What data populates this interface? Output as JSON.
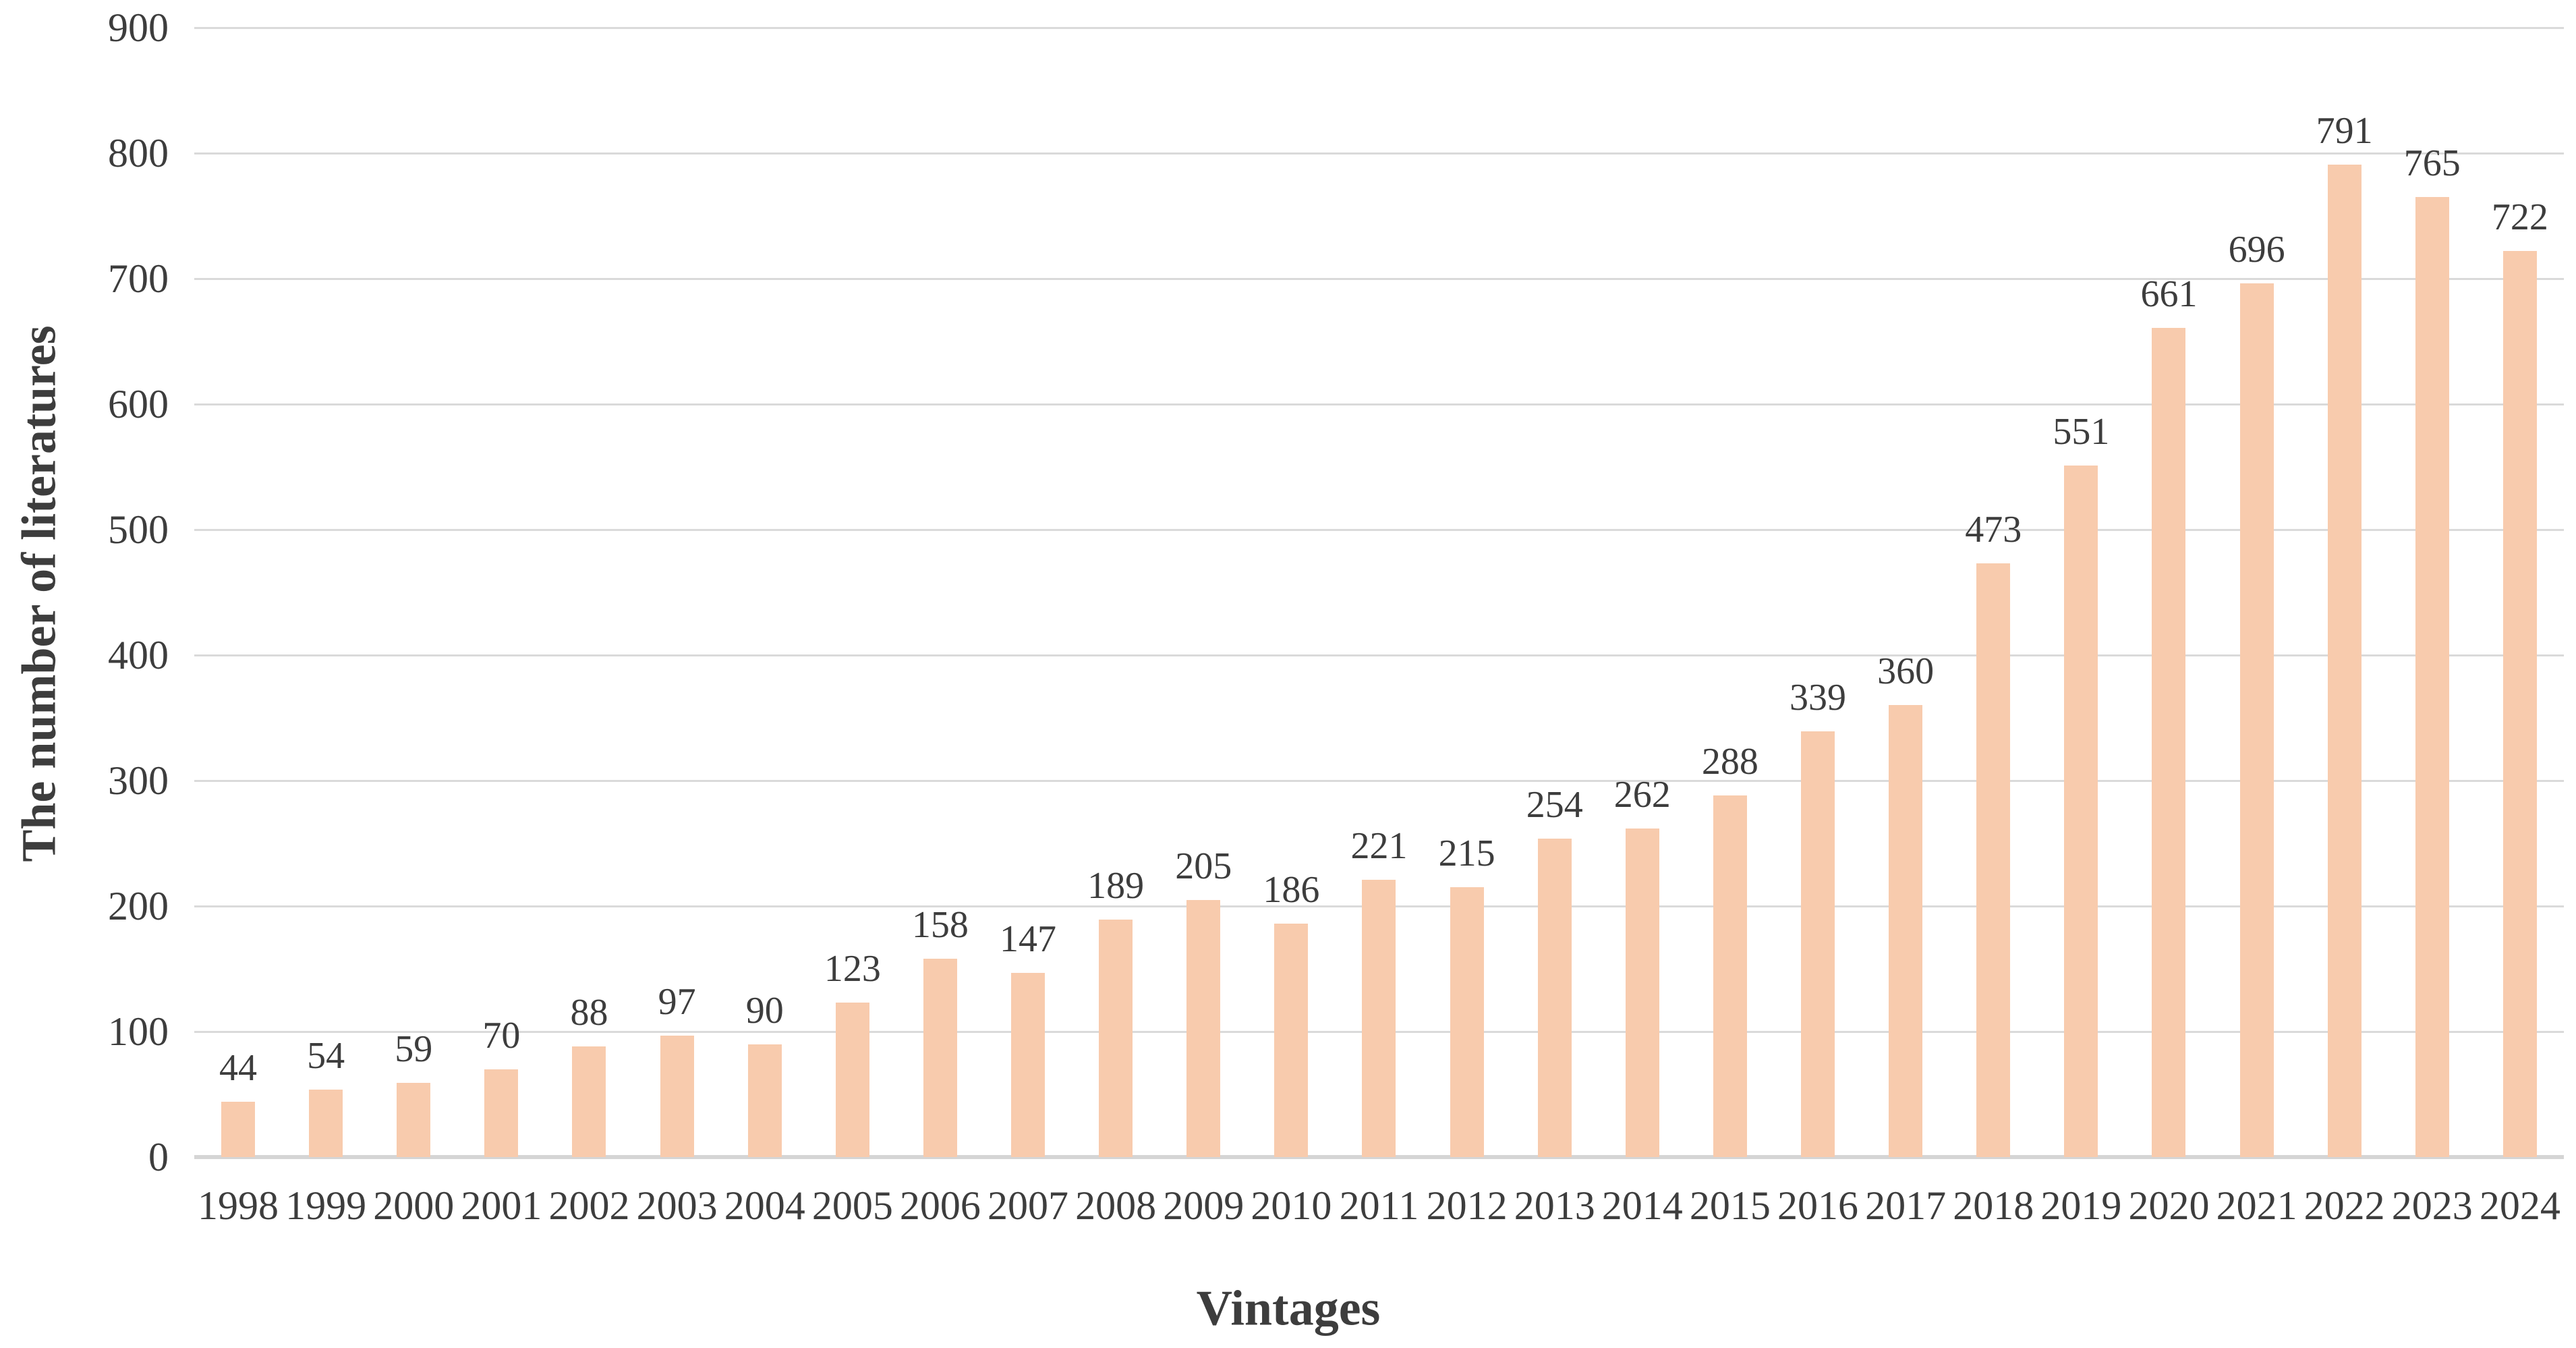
{
  "chart_data": {
    "type": "bar",
    "title": "",
    "xlabel": "Vintages",
    "ylabel": "The number of literatures",
    "categories": [
      "1998",
      "1999",
      "2000",
      "2001",
      "2002",
      "2003",
      "2004",
      "2005",
      "2006",
      "2007",
      "2008",
      "2009",
      "2010",
      "2011",
      "2012",
      "2013",
      "2014",
      "2015",
      "2016",
      "2017",
      "2018",
      "2019",
      "2020",
      "2021",
      "2022",
      "2023",
      "2024"
    ],
    "values": [
      44,
      54,
      59,
      70,
      88,
      97,
      90,
      123,
      158,
      147,
      189,
      205,
      186,
      221,
      215,
      254,
      262,
      288,
      339,
      360,
      473,
      551,
      661,
      696,
      791,
      765,
      722
    ],
    "data_labels_shown": true,
    "ylim": [
      0,
      900
    ],
    "yticks": [
      0,
      100,
      200,
      300,
      400,
      500,
      600,
      700,
      800,
      900
    ],
    "grid": "horizontal",
    "legend": "none",
    "colors": {
      "bar": "#F8CBAD",
      "gridline": "#DADADA",
      "axis_line": "#D5D5D5",
      "text": "#3D3D3D"
    }
  }
}
